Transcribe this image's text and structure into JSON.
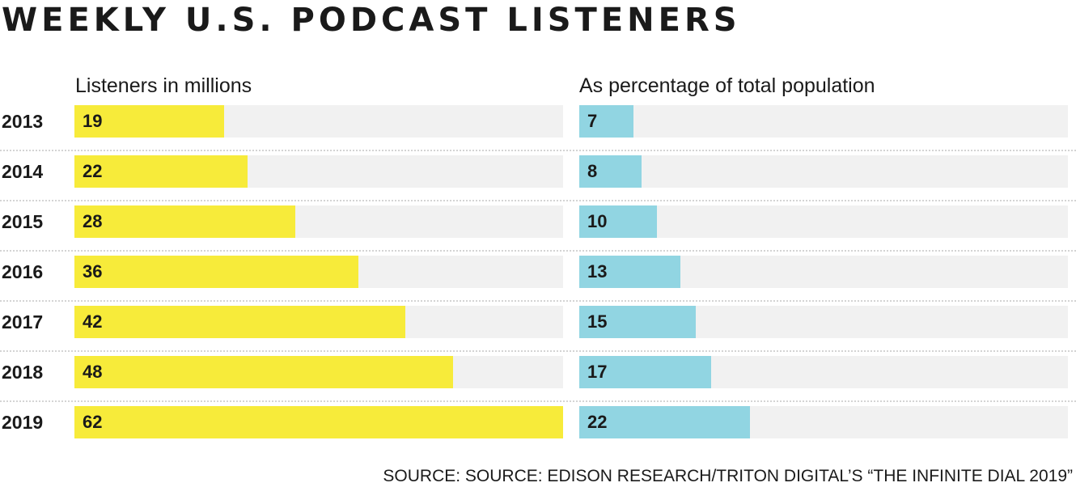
{
  "title": "WEEKLY U.S. PODCAST LISTENERS",
  "source": "SOURCE: SOURCE: EDISON RESEARCH/TRITON DIGITAL’S “THE INFINITE DIAL 2019”",
  "colors": {
    "listeners": "#f7eb3a",
    "percentage": "#91d5e2",
    "track": "#f1f1f1"
  },
  "chart_data": [
    {
      "type": "bar",
      "title": "Listeners in millions",
      "categories": [
        "2013",
        "2014",
        "2015",
        "2016",
        "2017",
        "2018",
        "2019"
      ],
      "values": [
        19,
        22,
        28,
        36,
        42,
        48,
        62
      ],
      "xlim": [
        0,
        62
      ]
    },
    {
      "type": "bar",
      "title": "As percentage of total population",
      "categories": [
        "2013",
        "2014",
        "2015",
        "2016",
        "2017",
        "2018",
        "2019"
      ],
      "values": [
        7,
        8,
        10,
        13,
        15,
        17,
        22
      ],
      "xlim": [
        0,
        63
      ]
    }
  ]
}
